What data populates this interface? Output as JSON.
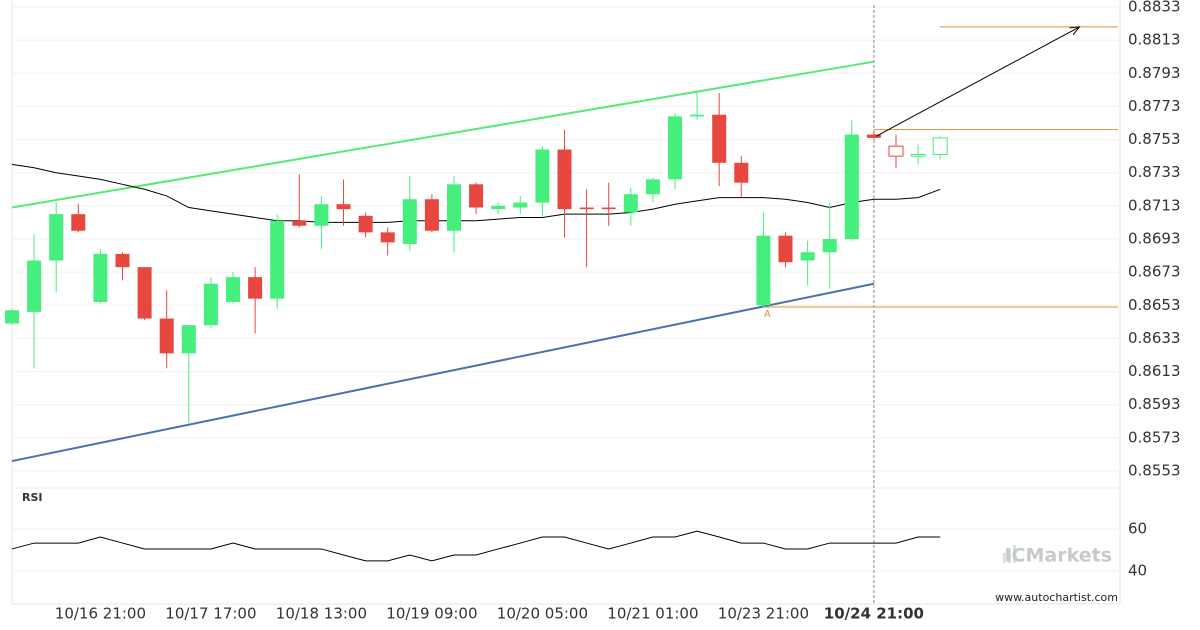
{
  "chart_data": {
    "type": "candlestick",
    "categories": [
      null,
      null,
      null,
      null,
      "10/16 21:00",
      null,
      null,
      null,
      null,
      "10/17 17:00",
      null,
      null,
      null,
      null,
      "10/18 13:00",
      null,
      null,
      null,
      null,
      "10/19 09:00",
      null,
      null,
      null,
      null,
      "10/20 05:00",
      null,
      null,
      null,
      null,
      "10/21 01:00",
      null,
      null,
      null,
      null,
      "10/23 21:00",
      null,
      null,
      null,
      null,
      "10/24 21:00",
      null,
      null,
      null
    ],
    "open": [
      0.8642,
      0.8649,
      0.868,
      0.8708,
      0.8655,
      0.8684,
      0.8676,
      0.8645,
      0.8624,
      0.8641,
      0.8655,
      0.867,
      0.8657,
      0.8704,
      0.8701,
      0.8714,
      0.8707,
      0.8697,
      0.869,
      0.8717,
      0.8698,
      0.8726,
      0.8711,
      0.8712,
      0.8715,
      0.8747,
      0.8712,
      0.8712,
      0.8709,
      0.872,
      0.8729,
      0.8767,
      0.8768,
      0.8739,
      0.8653,
      0.8695,
      0.868,
      0.8685,
      0.8693,
      0.8756,
      0.8749,
      0.8743,
      0.8744
    ],
    "high": [
      0.8651,
      0.8696,
      0.8715,
      0.8714,
      0.8687,
      0.8685,
      0.8676,
      0.8662,
      0.8641,
      0.867,
      0.8673,
      0.8676,
      0.8708,
      0.8732,
      0.8719,
      0.8729,
      0.8709,
      0.87,
      0.8731,
      0.872,
      0.8731,
      0.8727,
      0.8715,
      0.8719,
      0.8749,
      0.8759,
      0.8723,
      0.8727,
      0.8724,
      0.873,
      0.8769,
      0.8782,
      0.8781,
      0.8743,
      0.8709,
      0.8697,
      0.8692,
      0.8715,
      0.8765,
      0.8758,
      0.8756,
      0.875,
      0.8755
    ],
    "low": [
      0.8641,
      0.8615,
      0.8661,
      0.8697,
      0.8654,
      0.8668,
      0.8644,
      0.8615,
      0.8582,
      0.8639,
      0.8654,
      0.8636,
      0.8651,
      0.87,
      0.8687,
      0.8701,
      0.8694,
      0.8683,
      0.8686,
      0.8697,
      0.8685,
      0.8708,
      0.8708,
      0.8708,
      0.8707,
      0.8694,
      0.8676,
      0.8701,
      0.8701,
      0.8715,
      0.8723,
      0.8765,
      0.8725,
      0.8718,
      0.8651,
      0.8676,
      0.8665,
      0.8663,
      0.8692,
      0.8753,
      0.8736,
      0.8738,
      0.8741
    ],
    "close": [
      0.865,
      0.868,
      0.8708,
      0.8698,
      0.8684,
      0.8676,
      0.8645,
      0.8624,
      0.8641,
      0.8666,
      0.867,
      0.8657,
      0.8704,
      0.8701,
      0.8714,
      0.8711,
      0.8697,
      0.8691,
      0.8717,
      0.8698,
      0.8726,
      0.8712,
      0.8713,
      0.8715,
      0.8747,
      0.8711,
      0.8711,
      0.8711,
      0.872,
      0.8729,
      0.8767,
      0.8768,
      0.8739,
      0.8727,
      0.8695,
      0.8679,
      0.8685,
      0.8693,
      0.8756,
      0.8754,
      0.8743,
      0.8744,
      0.8754
    ],
    "up_color": "#46ef7d",
    "down_color": "#e8473f",
    "ylim": [
      0.8553,
      0.8833
    ],
    "yticks": [
      0.8553,
      0.8573,
      0.8593,
      0.8613,
      0.8633,
      0.8653,
      0.8673,
      0.8693,
      0.8713,
      0.8733,
      0.8753,
      0.8773,
      0.8793,
      0.8813,
      0.8833
    ],
    "grid": true,
    "current_index": 39,
    "forecast_start": 40,
    "moving_average": {
      "color": "#000000",
      "values": [
        0.8738,
        0.8736,
        0.8733,
        0.8731,
        0.8729,
        0.8726,
        0.8723,
        0.8719,
        0.8712,
        0.871,
        0.8708,
        0.8706,
        0.8704,
        0.8704,
        0.8703,
        0.8703,
        0.8703,
        0.8703,
        0.8704,
        0.8704,
        0.8704,
        0.8704,
        0.8705,
        0.8706,
        0.8706,
        0.8708,
        0.8708,
        0.8708,
        0.8709,
        0.8711,
        0.8714,
        0.8716,
        0.8718,
        0.8718,
        0.8718,
        0.8717,
        0.8715,
        0.8712,
        0.8715,
        0.8717,
        0.8717,
        0.8718,
        0.8723
      ]
    },
    "trendlines": [
      {
        "color": "#57ea77",
        "from": [
          0,
          0.8712
        ],
        "to": [
          39,
          0.88
        ]
      },
      {
        "color": "#4a72b0",
        "from": [
          0,
          0.8559
        ],
        "to": [
          39,
          0.8666
        ]
      }
    ],
    "levels": [
      {
        "value": 0.8759,
        "from": 39,
        "color": "#e0903a"
      },
      {
        "value": 0.8821,
        "from": 42,
        "color": "#e0903a"
      },
      {
        "value": 0.8652,
        "from": 34,
        "color": "#e0903a",
        "label": "A"
      }
    ],
    "arrow": {
      "from": [
        39.1,
        0.8755
      ],
      "to": [
        48.3,
        0.8821
      ],
      "color": "#000000"
    },
    "rsi": {
      "label": "RSI",
      "color": "#000000",
      "values": [
        50.5,
        53.3,
        53.3,
        53.3,
        56.2,
        53.3,
        50.5,
        50.5,
        50.5,
        50.5,
        53.3,
        50.5,
        50.5,
        50.5,
        50.5,
        47.6,
        44.8,
        44.8,
        47.6,
        44.8,
        47.6,
        47.6,
        50.5,
        53.3,
        56.2,
        56.2,
        53.3,
        50.5,
        53.3,
        56.2,
        56.2,
        59.0,
        56.2,
        53.3,
        53.3,
        50.5,
        50.5,
        53.3,
        53.3,
        53.3,
        53.3,
        56.2,
        56.2
      ],
      "ylim": [
        40,
        60
      ],
      "yticks": [
        40,
        60
      ]
    },
    "watermark": "ICMarkets",
    "source": "www.autochartist.com"
  }
}
